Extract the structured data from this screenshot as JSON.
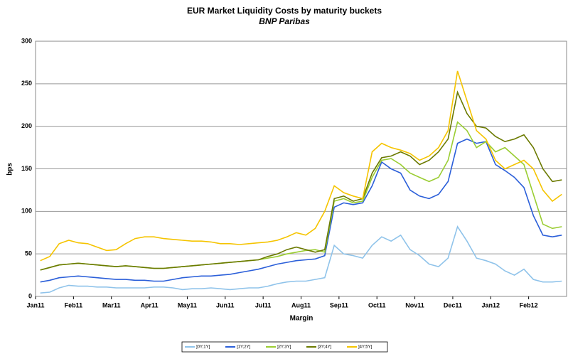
{
  "chart_data": {
    "type": "line",
    "title": "EUR Market Liquidity Costs by maturity buckets",
    "subtitle": "BNP Paribas",
    "x_label": "Margin",
    "y_label": "bps",
    "categories": [
      "Jan11",
      null,
      null,
      null,
      "Feb11",
      null,
      null,
      null,
      "Mar11",
      null,
      null,
      null,
      "Apr11",
      null,
      null,
      null,
      "May11",
      null,
      null,
      null,
      "Jun11",
      null,
      null,
      null,
      "Jul11",
      null,
      null,
      null,
      "Aug11",
      null,
      null,
      null,
      "Sep11",
      null,
      null,
      null,
      "Oct11",
      null,
      null,
      null,
      "Nov11",
      null,
      null,
      null,
      "Dec11",
      null,
      null,
      null,
      "Jan12",
      null,
      null,
      null,
      "Feb12",
      null,
      null,
      null
    ],
    "ylim": [
      0,
      300
    ],
    "yticks": [
      0,
      50,
      100,
      150,
      200,
      250,
      300
    ],
    "grid": true,
    "legend": "bottom",
    "series": [
      {
        "name": "]0Y;1Y]",
        "color": "#8fc3ea",
        "values": [
          4,
          5,
          10,
          13,
          12,
          12,
          11,
          11,
          10,
          10,
          10,
          10,
          11,
          11,
          10,
          8,
          9,
          9,
          10,
          9,
          8,
          9,
          10,
          10,
          12,
          15,
          17,
          18,
          18,
          20,
          22,
          60,
          50,
          48,
          45,
          60,
          70,
          65,
          72,
          55,
          48,
          38,
          35,
          45,
          82,
          65,
          45,
          42,
          38,
          30,
          25,
          32,
          20,
          17,
          17,
          18
        ]
      },
      {
        "name": "]1Y;2Y]",
        "color": "#2b5fd9",
        "values": [
          17,
          19,
          22,
          23,
          24,
          23,
          22,
          21,
          20,
          20,
          19,
          19,
          18,
          18,
          20,
          22,
          23,
          24,
          24,
          25,
          26,
          28,
          30,
          32,
          35,
          38,
          40,
          42,
          43,
          44,
          48,
          105,
          110,
          108,
          110,
          130,
          158,
          150,
          145,
          125,
          118,
          115,
          120,
          135,
          180,
          185,
          180,
          182,
          155,
          148,
          140,
          128,
          95,
          72,
          70,
          72
        ]
      },
      {
        "name": "]2Y;3Y]",
        "color": "#9acd32",
        "values": [
          31,
          34,
          37,
          38,
          39,
          38,
          37,
          36,
          35,
          36,
          35,
          34,
          33,
          33,
          34,
          35,
          36,
          37,
          38,
          39,
          40,
          41,
          42,
          43,
          45,
          47,
          50,
          52,
          54,
          55,
          52,
          112,
          115,
          110,
          112,
          140,
          160,
          162,
          155,
          145,
          140,
          135,
          140,
          160,
          205,
          195,
          175,
          182,
          170,
          175,
          165,
          155,
          120,
          85,
          80,
          82
        ]
      },
      {
        "name": "]3Y;4Y]",
        "color": "#6b7a00",
        "values": [
          31,
          34,
          37,
          38,
          39,
          38,
          37,
          36,
          35,
          36,
          35,
          34,
          33,
          33,
          34,
          35,
          36,
          37,
          38,
          39,
          40,
          41,
          42,
          43,
          47,
          50,
          55,
          58,
          55,
          52,
          55,
          115,
          118,
          112,
          115,
          145,
          163,
          165,
          170,
          165,
          155,
          160,
          170,
          185,
          240,
          215,
          200,
          198,
          188,
          182,
          185,
          190,
          175,
          150,
          135,
          137
        ]
      },
      {
        "name": "]4Y;5Y]",
        "color": "#f5c400",
        "values": [
          42,
          47,
          62,
          66,
          63,
          62,
          58,
          54,
          55,
          62,
          68,
          70,
          70,
          68,
          67,
          66,
          65,
          65,
          64,
          62,
          62,
          61,
          62,
          63,
          64,
          66,
          70,
          75,
          72,
          80,
          100,
          130,
          122,
          118,
          115,
          170,
          180,
          175,
          172,
          168,
          160,
          165,
          175,
          195,
          265,
          230,
          195,
          185,
          160,
          150,
          155,
          160,
          150,
          125,
          112,
          120
        ]
      }
    ]
  }
}
